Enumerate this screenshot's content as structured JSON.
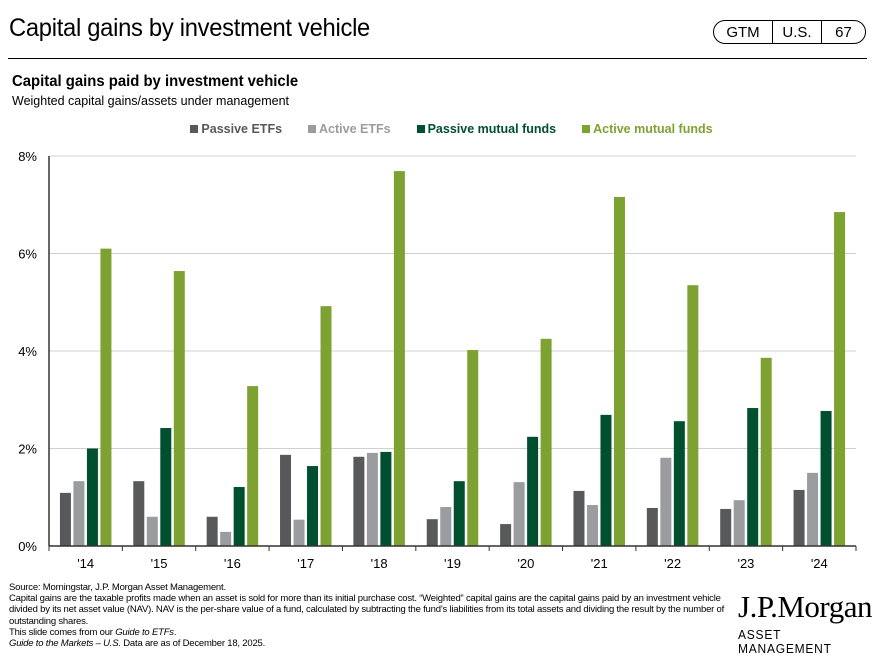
{
  "header": {
    "title": "Capital gains by investment vehicle",
    "badge": {
      "section": "GTM",
      "region": "U.S.",
      "page": "67"
    }
  },
  "chart_data": {
    "type": "bar",
    "title": "Capital gains paid by investment vehicle",
    "subtitle": "Weighted capital gains/assets under management",
    "xlabel": "",
    "ylabel": "",
    "ylim": [
      0,
      8
    ],
    "yticks": [
      0,
      2,
      4,
      6,
      8
    ],
    "ytick_labels": [
      "0%",
      "2%",
      "4%",
      "6%",
      "8%"
    ],
    "grid": true,
    "legend_position": "top-center",
    "categories": [
      "'14",
      "'15",
      "'16",
      "'17",
      "'18",
      "'19",
      "'20",
      "'21",
      "'22",
      "'23",
      "'24"
    ],
    "series": [
      {
        "name": "Passive ETFs",
        "color": "#58595b",
        "values": [
          1.09,
          1.33,
          0.6,
          1.87,
          1.83,
          0.55,
          0.45,
          1.13,
          0.78,
          0.76,
          1.15
        ]
      },
      {
        "name": "Active ETFs",
        "color": "#9a9c9f",
        "values": [
          1.33,
          0.6,
          0.29,
          0.54,
          1.91,
          0.8,
          1.31,
          0.84,
          1.81,
          0.94,
          1.5
        ]
      },
      {
        "name": "Passive mutual funds",
        "color": "#005030",
        "values": [
          2.0,
          2.42,
          1.21,
          1.64,
          1.93,
          1.33,
          2.24,
          2.69,
          2.56,
          2.83,
          2.77
        ]
      },
      {
        "name": "Active mutual funds",
        "color": "#7ea232",
        "values": [
          6.1,
          5.64,
          3.28,
          4.92,
          7.69,
          4.02,
          4.25,
          7.16,
          5.35,
          3.86,
          6.85
        ]
      }
    ]
  },
  "footer": {
    "source": "Source: Morningstar, J.P. Morgan Asset Management.",
    "note": "Capital gains are the taxable profits made when an asset is sold for more than its initial purchase cost. “Weighted” capital gains are the capital gains paid by an investment vehicle divided by its net asset value (NAV). NAV is the per-share value of a fund, calculated by subtracting the fund’s liabilities from its total assets and dividing the result by the number of outstanding shares.",
    "slide_prefix": "This slide comes from our ",
    "slide_guide": "Guide to ETFs",
    "slide_suffix": ".",
    "gtm_title": "Guide to the Markets – U.S.",
    "data_date": " Data are as of December 18, 2025."
  },
  "logo": {
    "name": "J.P.Morgan",
    "tagline": "ASSET MANAGEMENT"
  }
}
